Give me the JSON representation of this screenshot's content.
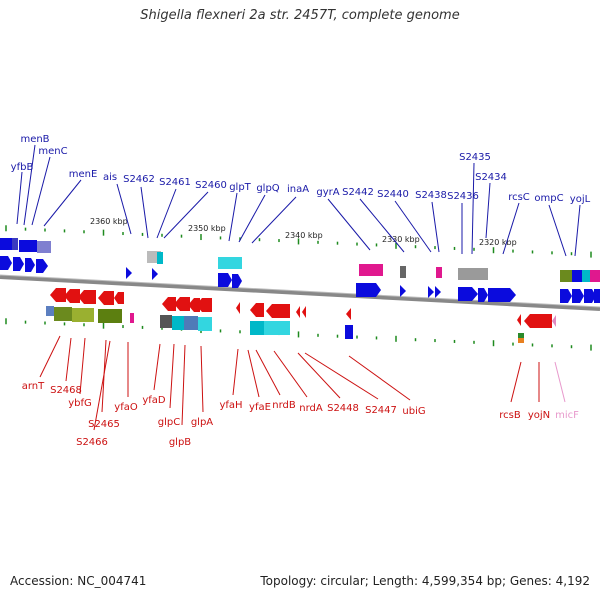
{
  "title": "Shigella flexneri 2a str. 2457T, complete genome",
  "accession": "Accession: NC_004741",
  "topology": "Topology: circular; Length: 4,599,354 bp; Genes: 4,192",
  "colors": {
    "forward_label": "#1a1aa8",
    "reverse_label": "#cc1111",
    "rna_label": "#e899cc",
    "forward_gene": "#0b0bdd",
    "reverse_gene": "#e11111",
    "backbone": "#888888",
    "tick": "#1e8a1e"
  },
  "kbp_ticks": [
    "2360 kbp",
    "2350 kbp",
    "2340 kbp",
    "2330 kbp",
    "2320 kbp"
  ],
  "forward_genes": [
    "yfbB",
    "menB",
    "menC",
    "menE",
    "ais",
    "S2462",
    "S2461",
    "S2460",
    "glpT",
    "glpQ",
    "inaA",
    "gyrA",
    "S2442",
    "S2440",
    "S2438",
    "S2436",
    "S2435",
    "S2434",
    "rcsC",
    "ompC",
    "yojL"
  ],
  "reverse_genes": [
    "arnT",
    "S2468",
    "ybfG",
    "S2465",
    "S2466",
    "yfaO",
    "yfaD",
    "glpC",
    "glpB",
    "glpA",
    "yfaH",
    "yfaE",
    "nrdB",
    "nrdA",
    "S2448",
    "S2447",
    "ubiG",
    "rcsB",
    "yojN",
    "micF"
  ]
}
